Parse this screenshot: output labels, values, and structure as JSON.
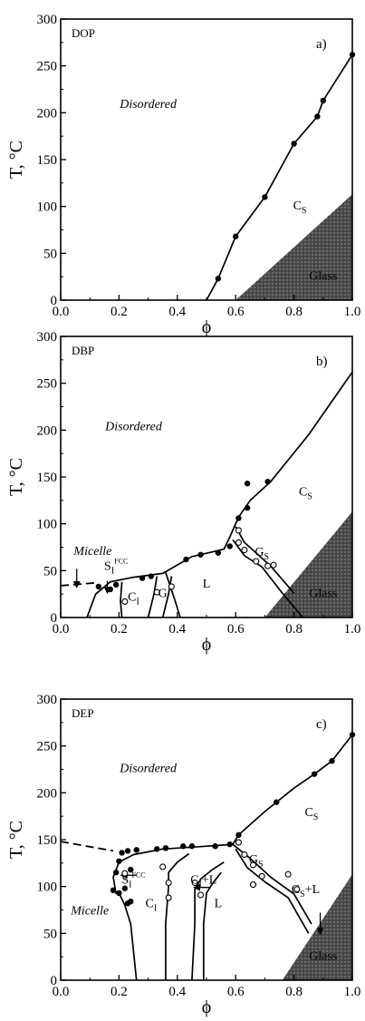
{
  "chart_data": [
    {
      "type": "scatter",
      "panel_name": "DOP",
      "panel_letter": "a)",
      "xlabel": "ϕ",
      "ylabel": "T, °C",
      "xlim": [
        0.0,
        1.0
      ],
      "ylim": [
        0,
        300
      ],
      "xticks": [
        "0.0",
        "0.2",
        "0.4",
        "0.6",
        "0.8",
        "1.0"
      ],
      "yticks": [
        "0",
        "50",
        "100",
        "150",
        "200",
        "250",
        "300"
      ],
      "points_filled": [
        [
          0.54,
          23
        ],
        [
          0.6,
          68
        ],
        [
          0.7,
          110
        ],
        [
          0.8,
          167
        ],
        [
          0.88,
          196
        ],
        [
          0.9,
          213
        ],
        [
          1.0,
          262
        ]
      ],
      "points_open": [],
      "lines_solid": [
        [
          [
            0.5,
            0
          ],
          [
            0.54,
            23
          ],
          [
            0.6,
            68
          ],
          [
            0.7,
            110
          ],
          [
            0.8,
            167
          ],
          [
            0.88,
            196
          ],
          [
            0.9,
            213
          ],
          [
            1.0,
            262
          ]
        ]
      ],
      "lines_dashed": [],
      "glass_region": [
        [
          0.6,
          0
        ],
        [
          1.0,
          0
        ],
        [
          1.0,
          113
        ]
      ],
      "labels": [
        {
          "text": "Disordered",
          "x": 0.3,
          "y": 205,
          "style": "italic"
        },
        {
          "text": "C",
          "sub": "S",
          "x": 0.82,
          "y": 97,
          "style": "normal"
        },
        {
          "text": "Glass",
          "x": 0.9,
          "y": 22,
          "style": "glass"
        }
      ]
    },
    {
      "type": "scatter",
      "panel_name": "DBP",
      "panel_letter": "b)",
      "xlabel": "ϕ",
      "ylabel": "T, °C",
      "xlim": [
        0.0,
        1.0
      ],
      "ylim": [
        0,
        300
      ],
      "xticks": [
        "0.0",
        "0.2",
        "0.4",
        "0.6",
        "0.8",
        "1.0"
      ],
      "yticks": [
        "0",
        "50",
        "100",
        "150",
        "200",
        "250",
        "300"
      ],
      "points_filled": [
        [
          0.13,
          33
        ],
        [
          0.17,
          30
        ],
        [
          0.19,
          35
        ],
        [
          0.28,
          42
        ],
        [
          0.31,
          44
        ],
        [
          0.43,
          62
        ],
        [
          0.48,
          67
        ],
        [
          0.54,
          69
        ],
        [
          0.58,
          76
        ],
        [
          0.61,
          106
        ],
        [
          0.64,
          117
        ],
        [
          0.71,
          145
        ],
        [
          0.64,
          143
        ]
      ],
      "points_open": [
        [
          0.22,
          17
        ],
        [
          0.33,
          27
        ],
        [
          0.38,
          33
        ],
        [
          0.61,
          93
        ],
        [
          0.61,
          80
        ],
        [
          0.63,
          72
        ],
        [
          0.67,
          60
        ],
        [
          0.71,
          55
        ],
        [
          0.73,
          56
        ]
      ],
      "lines_solid": [
        [
          [
            0.09,
            0
          ],
          [
            0.12,
            25
          ],
          [
            0.17,
            38
          ],
          [
            0.25,
            43
          ],
          [
            0.35,
            47
          ],
          [
            0.45,
            65
          ],
          [
            0.52,
            70
          ],
          [
            0.56,
            73
          ],
          [
            0.58,
            86
          ],
          [
            0.61,
            107
          ],
          [
            0.65,
            125
          ],
          [
            0.72,
            145
          ],
          [
            0.85,
            195
          ],
          [
            1.0,
            262
          ]
        ],
        [
          [
            0.21,
            0
          ],
          [
            0.205,
            18
          ],
          [
            0.21,
            38
          ]
        ],
        [
          [
            0.3,
            0
          ],
          [
            0.32,
            25
          ],
          [
            0.33,
            44
          ]
        ],
        [
          [
            0.35,
            0
          ],
          [
            0.37,
            25
          ],
          [
            0.38,
            44
          ]
        ],
        [
          [
            0.41,
            0
          ],
          [
            0.39,
            20
          ],
          [
            0.36,
            48
          ]
        ],
        [
          [
            0.6,
            97
          ],
          [
            0.63,
            80
          ],
          [
            0.72,
            55
          ],
          [
            0.8,
            26
          ]
        ],
        [
          [
            0.59,
            83
          ],
          [
            0.63,
            66
          ],
          [
            0.69,
            54
          ],
          [
            0.76,
            26
          ],
          [
            0.83,
            0
          ]
        ]
      ],
      "lines_dashed": [
        [
          [
            0.0,
            34
          ],
          [
            0.12,
            37
          ]
        ]
      ],
      "glass_region": [
        [
          0.7,
          0
        ],
        [
          1.0,
          0
        ],
        [
          1.0,
          113
        ]
      ],
      "arrows": [
        {
          "x1": 0.055,
          "y1": 52,
          "x2": 0.055,
          "y2": 33
        },
        {
          "x1": 0.16,
          "y1": 39,
          "x2": 0.16,
          "y2": 27
        }
      ],
      "labels": [
        {
          "text": "Disordered",
          "x": 0.25,
          "y": 200,
          "style": "italic"
        },
        {
          "text": "Micelle",
          "x": 0.11,
          "y": 67,
          "style": "italic"
        },
        {
          "text": "S",
          "sub": "I",
          "sup": "FCC",
          "x": 0.19,
          "y": 51,
          "style": "normal"
        },
        {
          "text": "C",
          "sub": "I",
          "x": 0.25,
          "y": 18,
          "style": "normal"
        },
        {
          "text": "G",
          "x": 0.35,
          "y": 22,
          "style": "normal"
        },
        {
          "text": "L",
          "x": 0.5,
          "y": 32,
          "style": "normal"
        },
        {
          "text": "G",
          "sub": "S",
          "x": 0.69,
          "y": 66,
          "style": "normal"
        },
        {
          "text": "C",
          "sub": "S",
          "x": 0.84,
          "y": 130,
          "style": "normal"
        },
        {
          "text": "Glass",
          "x": 0.9,
          "y": 22,
          "style": "glass"
        }
      ]
    },
    {
      "type": "scatter",
      "panel_name": "DEP",
      "panel_letter": "c)",
      "xlabel": "ϕ",
      "ylabel": "T, °C",
      "xlim": [
        0.0,
        1.0
      ],
      "ylim": [
        0,
        300
      ],
      "xticks": [
        "0.0",
        "0.2",
        "0.4",
        "0.6",
        "0.8",
        "1.0"
      ],
      "yticks": [
        "0",
        "50",
        "100",
        "150",
        "200",
        "250",
        "300"
      ],
      "points_filled": [
        [
          0.21,
          136
        ],
        [
          0.23,
          138
        ],
        [
          0.26,
          139
        ],
        [
          0.33,
          140
        ],
        [
          0.36,
          141
        ],
        [
          0.42,
          143
        ],
        [
          0.45,
          143
        ],
        [
          0.53,
          143
        ],
        [
          0.58,
          145
        ],
        [
          0.61,
          155
        ],
        [
          0.74,
          190
        ],
        [
          0.87,
          220
        ],
        [
          0.93,
          234
        ],
        [
          1.0,
          262
        ],
        [
          0.2,
          127
        ],
        [
          0.19,
          115
        ],
        [
          0.18,
          96
        ],
        [
          0.2,
          93
        ],
        [
          0.22,
          98
        ],
        [
          0.23,
          82
        ],
        [
          0.24,
          84
        ],
        [
          0.24,
          118
        ]
      ],
      "points_open": [
        [
          0.22,
          114
        ],
        [
          0.35,
          121
        ],
        [
          0.37,
          104
        ],
        [
          0.37,
          88
        ],
        [
          0.46,
          104
        ],
        [
          0.48,
          91
        ],
        [
          0.61,
          147
        ],
        [
          0.63,
          134
        ],
        [
          0.66,
          123
        ],
        [
          0.69,
          111
        ],
        [
          0.78,
          113
        ],
        [
          0.81,
          97
        ],
        [
          0.66,
          102
        ]
      ],
      "lines_solid": [
        [
          [
            0.19,
            92
          ],
          [
            0.18,
            110
          ],
          [
            0.2,
            126
          ],
          [
            0.25,
            134
          ],
          [
            0.35,
            140
          ],
          [
            0.45,
            142
          ],
          [
            0.59,
            145
          ]
        ],
        [
          [
            0.26,
            0
          ],
          [
            0.24,
            60
          ],
          [
            0.22,
            80
          ],
          [
            0.2,
            93
          ]
        ],
        [
          [
            0.36,
            0
          ],
          [
            0.36,
            60
          ],
          [
            0.37,
            100
          ],
          [
            0.37,
            115
          ],
          [
            0.4,
            126
          ],
          [
            0.44,
            135
          ]
        ],
        [
          [
            0.45,
            0
          ],
          [
            0.46,
            60
          ],
          [
            0.46,
            97
          ],
          [
            0.48,
            108
          ],
          [
            0.52,
            118
          ],
          [
            0.56,
            126
          ]
        ],
        [
          [
            0.49,
            0
          ],
          [
            0.49,
            60
          ],
          [
            0.5,
            93
          ],
          [
            0.52,
            103
          ],
          [
            0.55,
            115
          ]
        ],
        [
          [
            0.59,
            145
          ],
          [
            0.61,
            155
          ],
          [
            0.7,
            180
          ],
          [
            0.8,
            205
          ],
          [
            0.87,
            220
          ],
          [
            0.93,
            234
          ],
          [
            1.0,
            262
          ]
        ],
        [
          [
            0.59,
            145
          ],
          [
            0.65,
            130
          ],
          [
            0.72,
            110
          ],
          [
            0.8,
            92
          ],
          [
            0.86,
            60
          ]
        ],
        [
          [
            0.6,
            140
          ],
          [
            0.64,
            120
          ],
          [
            0.7,
            105
          ],
          [
            0.78,
            88
          ],
          [
            0.85,
            50
          ]
        ]
      ],
      "lines_dashed": [
        [
          [
            0.0,
            148
          ],
          [
            0.18,
            138
          ]
        ]
      ],
      "glass_region": [
        [
          0.76,
          0
        ],
        [
          1.0,
          0
        ],
        [
          1.0,
          113
        ]
      ],
      "arrows": [
        {
          "x1": 0.26,
          "y1": 112,
          "x2": 0.21,
          "y2": 112
        },
        {
          "x1": 0.51,
          "y1": 99,
          "x2": 0.46,
          "y2": 99
        },
        {
          "x1": 0.89,
          "y1": 72,
          "x2": 0.89,
          "y2": 50
        }
      ],
      "labels": [
        {
          "text": "Disordered",
          "x": 0.3,
          "y": 222,
          "style": "italic"
        },
        {
          "text": "S",
          "sub": "I",
          "sup": "FCC",
          "x": 0.25,
          "y": 103,
          "style": "normal"
        },
        {
          "text": "C",
          "sub": "I",
          "x": 0.31,
          "y": 78,
          "style": "normal"
        },
        {
          "text": "C",
          "sub": "I",
          "extra": "+L",
          "x": 0.49,
          "y": 103,
          "style": "normal"
        },
        {
          "text": "L",
          "x": 0.54,
          "y": 78,
          "style": "normal"
        },
        {
          "text": "G",
          "sub": "S",
          "x": 0.67,
          "y": 125,
          "style": "normal"
        },
        {
          "text": "C",
          "sub": "S",
          "extra": "+L",
          "x": 0.84,
          "y": 93,
          "style": "normal"
        },
        {
          "text": "C",
          "sub": "S",
          "x": 0.86,
          "y": 175,
          "style": "normal"
        },
        {
          "text": "Micelle",
          "x": 0.1,
          "y": 70,
          "style": "italic"
        },
        {
          "text": "Glass",
          "x": 0.9,
          "y": 22,
          "style": "glass"
        }
      ]
    }
  ]
}
